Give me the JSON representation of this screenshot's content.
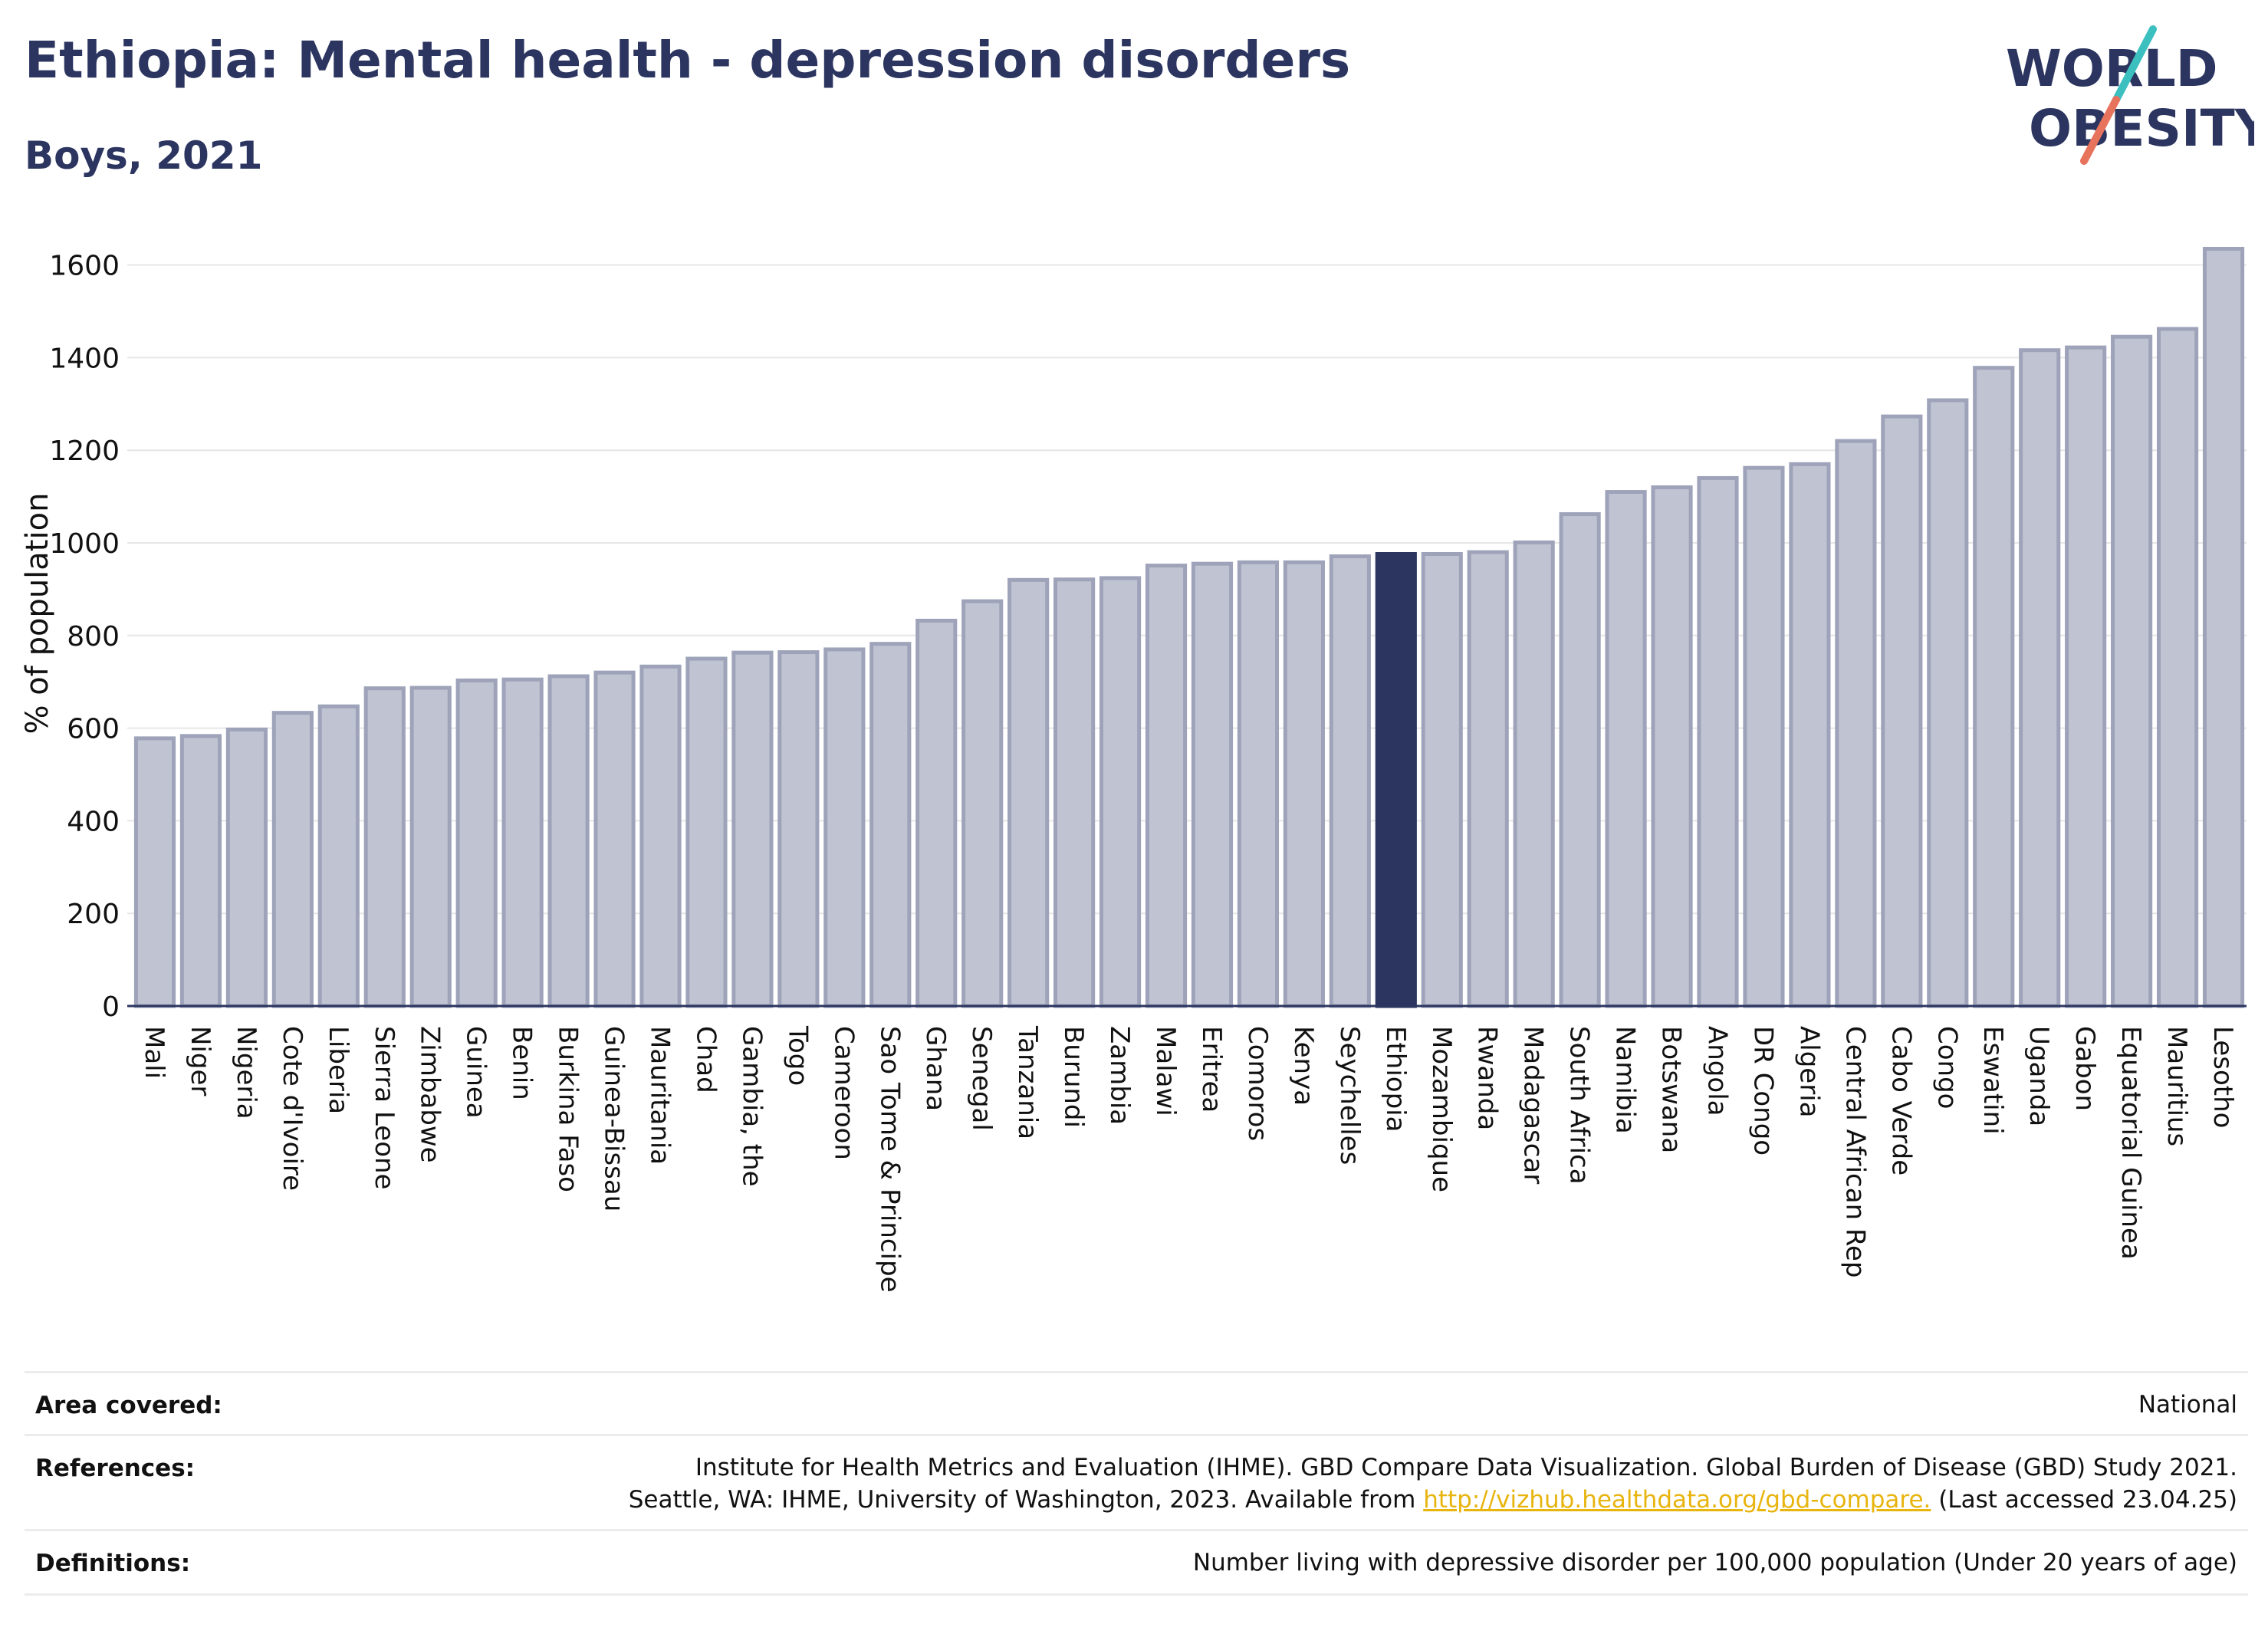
{
  "header": {
    "title": "Ethiopia: Mental health - depression disorders",
    "subtitle": "Boys, 2021"
  },
  "logo": {
    "line1": "WORLD",
    "line2": "OBESITY",
    "colors": {
      "text": "#2b3560",
      "slash_top": "#3bbfbf",
      "slash_bottom": "#e8735c"
    }
  },
  "colors": {
    "bar_fill": "#c0c3d1",
    "bar_stroke": "#9ea3ba",
    "highlight_fill": "#2b3560",
    "grid": "#e6e6e6",
    "axis": "#2b3560"
  },
  "chart_data": {
    "type": "bar",
    "ylabel": "% of population",
    "ylim": [
      0,
      1700
    ],
    "yticks": [
      0,
      200,
      400,
      600,
      800,
      1000,
      1200,
      1400,
      1600
    ],
    "grid": true,
    "highlight": "Ethiopia",
    "categories": [
      "Mali",
      "Niger",
      "Nigeria",
      "Cote d'Ivoire",
      "Liberia",
      "Sierra Leone",
      "Zimbabwe",
      "Guinea",
      "Benin",
      "Burkina Faso",
      "Guinea-Bissau",
      "Mauritania",
      "Chad",
      "Gambia, the",
      "Togo",
      "Cameroon",
      "Sao Tome & Principe",
      "Ghana",
      "Senegal",
      "Tanzania",
      "Burundi",
      "Zambia",
      "Malawi",
      "Eritrea",
      "Comoros",
      "Kenya",
      "Seychelles",
      "Ethiopia",
      "Mozambique",
      "Rwanda",
      "Madagascar",
      "South Africa",
      "Namibia",
      "Botswana",
      "Angola",
      "DR Congo",
      "Algeria",
      "Central African Rep",
      "Cabo Verde",
      "Congo",
      "Eswatini",
      "Uganda",
      "Gabon",
      "Equatorial Guinea",
      "Mauritius",
      "Lesotho"
    ],
    "values": [
      578,
      583,
      597,
      633,
      647,
      686,
      687,
      703,
      705,
      712,
      720,
      733,
      750,
      763,
      764,
      770,
      782,
      832,
      874,
      920,
      921,
      924,
      951,
      955,
      958,
      958,
      971,
      976,
      976,
      980,
      1001,
      1062,
      1110,
      1120,
      1140,
      1162,
      1170,
      1220,
      1273,
      1308,
      1378,
      1416,
      1422,
      1445,
      1462,
      1635
    ]
  },
  "meta": {
    "area_label": "Area covered:",
    "area_value": "National",
    "references_label": "References:",
    "references_line1": "Institute for Health Metrics and Evaluation (IHME). GBD Compare Data Visualization. Global Burden of Disease (GBD) Study 2021.",
    "references_line2_pre": "Seattle, WA: IHME, University of Washington, 2023. Available from ",
    "references_link": "http://vizhub.healthdata.org/gbd-compare.",
    "references_line2_post": " (Last accessed 23.04.25)",
    "definitions_label": "Definitions:",
    "definitions_value": "Number living with depressive disorder per 100,000 population (Under 20 years of age)"
  }
}
